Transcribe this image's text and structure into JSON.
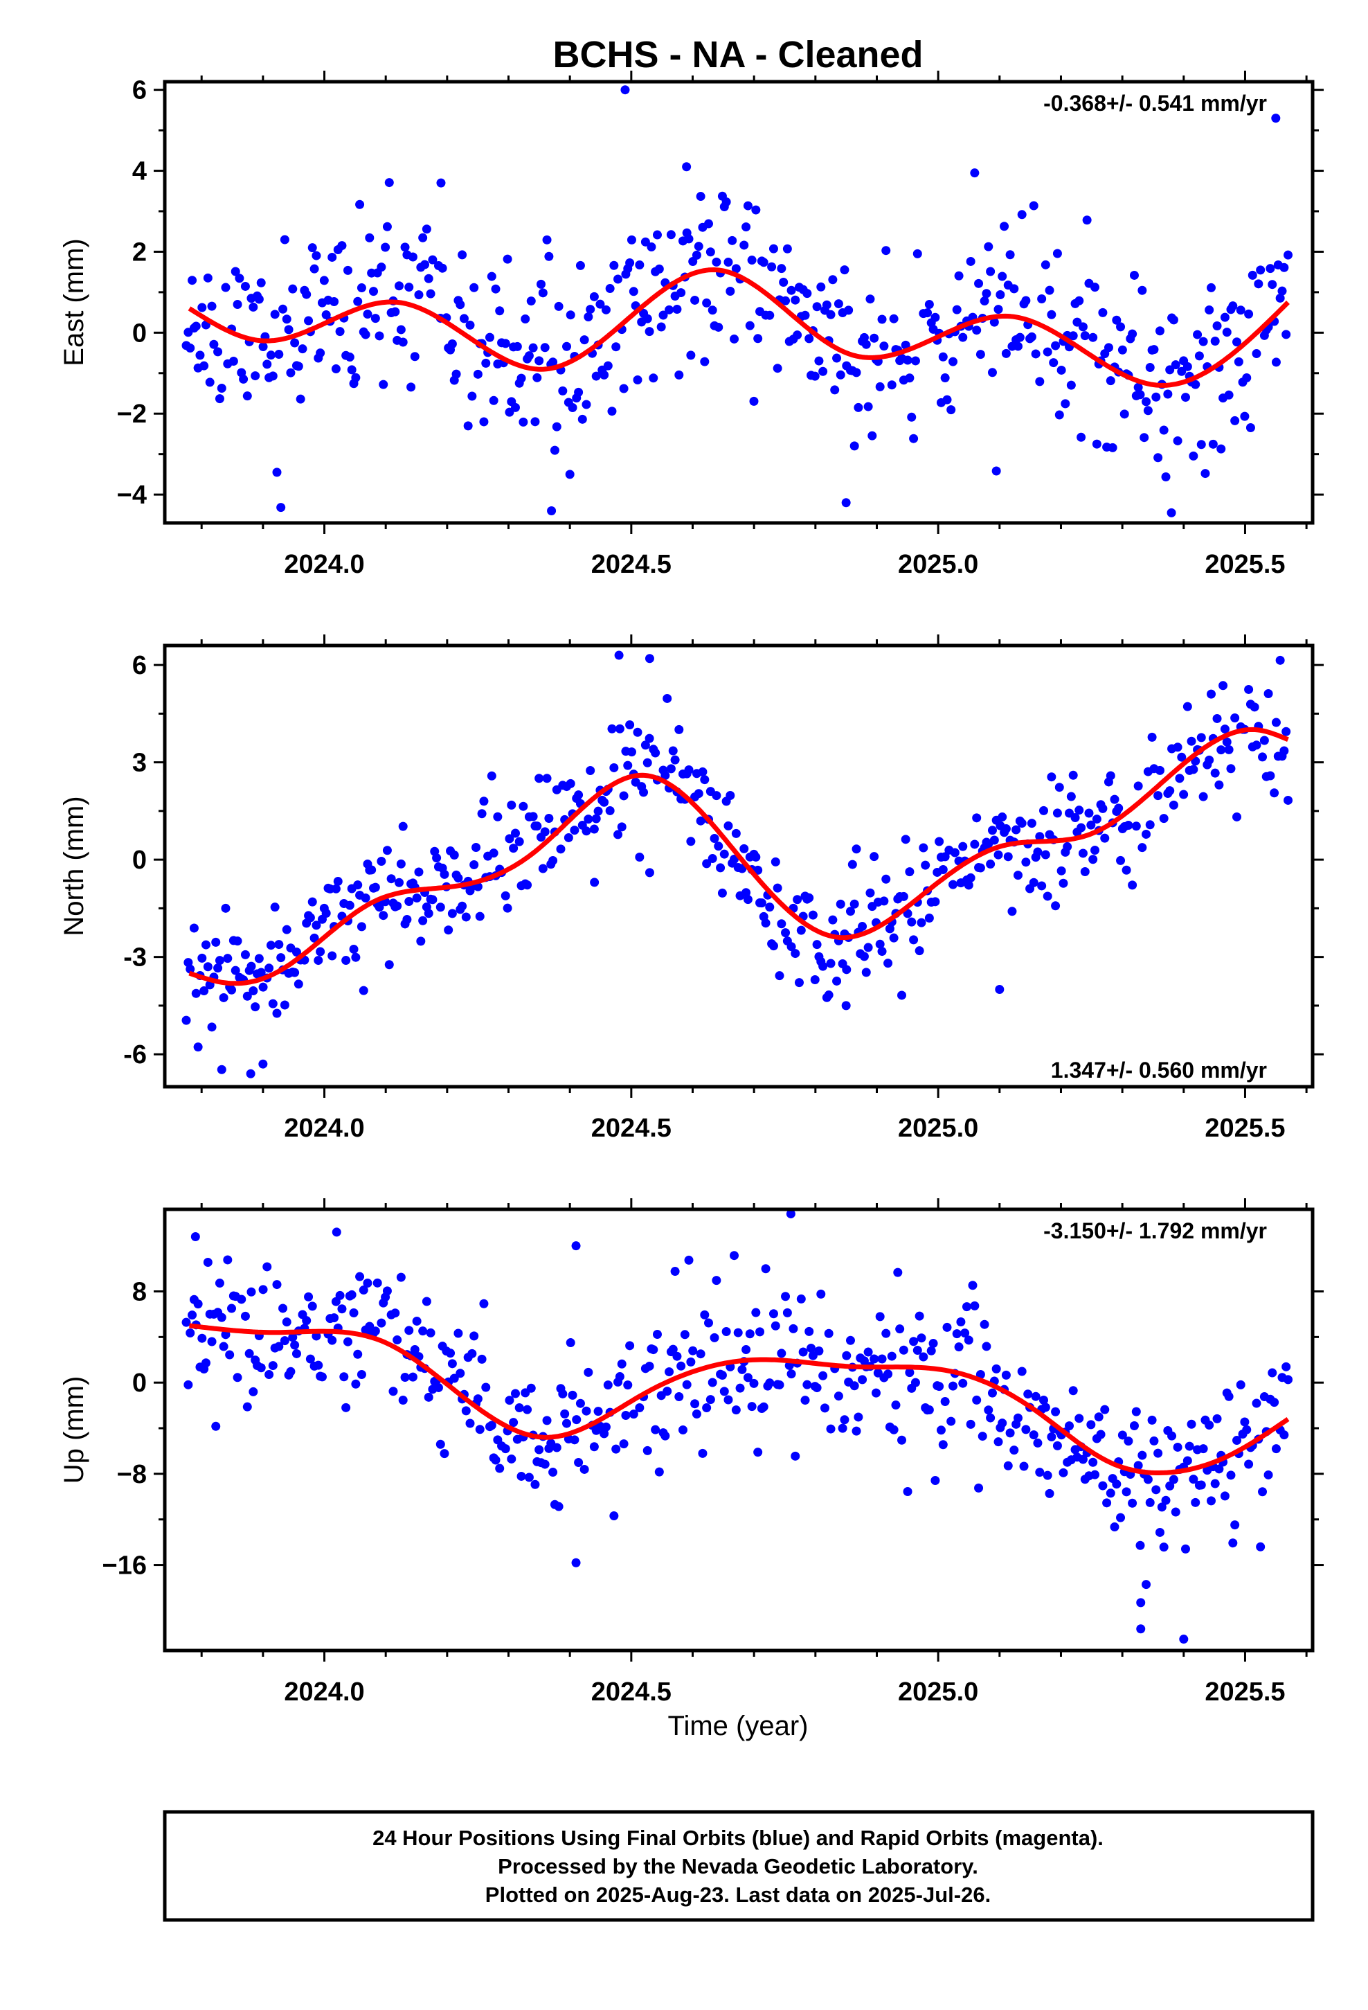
{
  "chart_data": [
    {
      "type": "scatter",
      "title": "BCHS  - NA - Cleaned",
      "ylabel": "East (mm)",
      "xlabel": "",
      "rate": "-0.368+/- 0.541 mm/yr",
      "xlim": [
        2023.74,
        2025.61
      ],
      "ylim": [
        -4.7,
        6.2
      ],
      "yticks": [
        6,
        4,
        2,
        0,
        -2,
        -4
      ],
      "ytick_labels": [
        "6",
        "4",
        "2",
        "0",
        "−2",
        "−4"
      ],
      "xticks": [
        2024.0,
        2024.5,
        2025.0,
        2025.5
      ],
      "xtick_labels": [
        "2024.0",
        "2024.5",
        "2025.0",
        "2025.5"
      ],
      "point_color": "#0000ff",
      "line_color": "#ff0000",
      "fit_knots": [
        [
          2023.78,
          0.6
        ],
        [
          2023.9,
          -0.2
        ],
        [
          2024.12,
          0.75
        ],
        [
          2024.36,
          -0.9
        ],
        [
          2024.64,
          1.55
        ],
        [
          2024.86,
          -0.55
        ],
        [
          2025.12,
          0.4
        ],
        [
          2025.36,
          -1.3
        ],
        [
          2025.57,
          0.75
        ]
      ],
      "noise_sd": 1.1,
      "n_points": 560,
      "seed": 11,
      "outliers": [
        [
          2024.49,
          6.0
        ],
        [
          2025.55,
          5.3
        ],
        [
          2024.59,
          4.1
        ],
        [
          2024.19,
          3.7
        ],
        [
          2024.37,
          -4.4
        ],
        [
          2025.38,
          -4.45
        ],
        [
          2024.85,
          -4.2
        ],
        [
          2024.4,
          -3.5
        ]
      ]
    },
    {
      "type": "scatter",
      "title": "",
      "ylabel": "North (mm)",
      "xlabel": "",
      "rate": "1.347+/- 0.560 mm/yr",
      "xlim": [
        2023.74,
        2025.61
      ],
      "ylim": [
        -7.0,
        6.6
      ],
      "yticks": [
        6,
        3,
        0,
        -3,
        -6
      ],
      "ytick_labels": [
        "6",
        "3",
        "0",
        "-3",
        "-6"
      ],
      "xticks": [
        2024.0,
        2024.5,
        2025.0,
        2025.5
      ],
      "xtick_labels": [
        "2024.0",
        "2024.5",
        "2025.0",
        "2025.5"
      ],
      "point_color": "#0000ff",
      "line_color": "#ff0000",
      "fit_knots": [
        [
          2023.78,
          -3.5
        ],
        [
          2023.84,
          -3.8
        ],
        [
          2023.92,
          -3.5
        ],
        [
          2024.08,
          -1.3
        ],
        [
          2024.22,
          -0.8
        ],
        [
          2024.34,
          0.2
        ],
        [
          2024.52,
          2.6
        ],
        [
          2024.68,
          0.0
        ],
        [
          2024.84,
          -2.4
        ],
        [
          2024.98,
          -1.0
        ],
        [
          2025.1,
          0.4
        ],
        [
          2025.25,
          0.8
        ],
        [
          2025.36,
          2.3
        ],
        [
          2025.52,
          4.0
        ],
        [
          2025.57,
          3.7
        ]
      ],
      "noise_sd": 0.95,
      "n_points": 560,
      "seed": 23,
      "outliers": [
        [
          2024.48,
          6.3
        ],
        [
          2024.53,
          6.2
        ],
        [
          2023.88,
          -6.6
        ],
        [
          2023.9,
          -6.3
        ],
        [
          2024.85,
          -4.5
        ],
        [
          2025.1,
          -4.0
        ],
        [
          2024.44,
          -0.7
        ],
        [
          2024.53,
          -0.4
        ]
      ]
    },
    {
      "type": "scatter",
      "title": "",
      "ylabel": "Up (mm)",
      "xlabel": "Time (year)",
      "rate": "-3.150+/- 1.792 mm/yr",
      "xlim": [
        2023.74,
        2025.61
      ],
      "ylim": [
        -23.5,
        15.2
      ],
      "yticks": [
        8,
        0,
        -8,
        -16
      ],
      "ytick_labels": [
        "8",
        "0",
        "−8",
        "−16"
      ],
      "xticks": [
        2024.0,
        2024.5,
        2025.0,
        2025.5
      ],
      "xtick_labels": [
        "2024.0",
        "2024.5",
        "2025.0",
        "2025.5"
      ],
      "point_color": "#0000ff",
      "line_color": "#ff0000",
      "fit_knots": [
        [
          2023.78,
          5.0
        ],
        [
          2023.92,
          4.4
        ],
        [
          2024.0,
          4.5
        ],
        [
          2024.1,
          3.5
        ],
        [
          2024.22,
          -1.0
        ],
        [
          2024.36,
          -4.8
        ],
        [
          2024.52,
          -1.0
        ],
        [
          2024.7,
          2.0
        ],
        [
          2024.86,
          1.4
        ],
        [
          2025.02,
          1.0
        ],
        [
          2025.16,
          -2.5
        ],
        [
          2025.28,
          -7.0
        ],
        [
          2025.37,
          -7.9
        ],
        [
          2025.47,
          -6.5
        ],
        [
          2025.57,
          -3.2
        ]
      ],
      "noise_sd": 3.4,
      "n_points": 560,
      "seed": 37,
      "outliers": [
        [
          2024.76,
          14.8
        ],
        [
          2024.41,
          -15.8
        ],
        [
          2025.33,
          -21.6
        ],
        [
          2025.4,
          -22.5
        ],
        [
          2025.33,
          -19.3
        ],
        [
          2023.79,
          12.8
        ],
        [
          2024.02,
          13.2
        ],
        [
          2024.41,
          12.0
        ]
      ]
    }
  ],
  "footer": {
    "line1": "24 Hour Positions Using Final Orbits (blue) and Rapid Orbits (magenta).",
    "line2": "Processed by the Nevada Geodetic Laboratory.",
    "line3": "Plotted on 2025-Aug-23. Last data on 2025-Jul-26."
  }
}
